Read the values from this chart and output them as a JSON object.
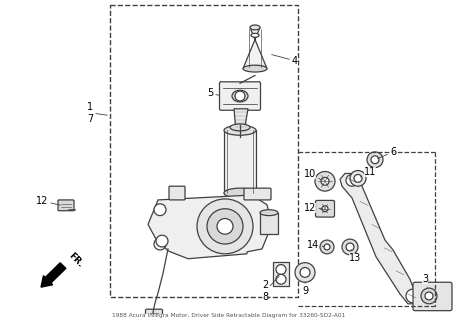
{
  "title": "1988 Acura Integra Motor, Driver Side Retractable Diagram for 33260-SD2-A01",
  "bg_color": "#ffffff",
  "line_color": "#404040",
  "fig_w": 4.58,
  "fig_h": 3.2,
  "dpi": 100
}
